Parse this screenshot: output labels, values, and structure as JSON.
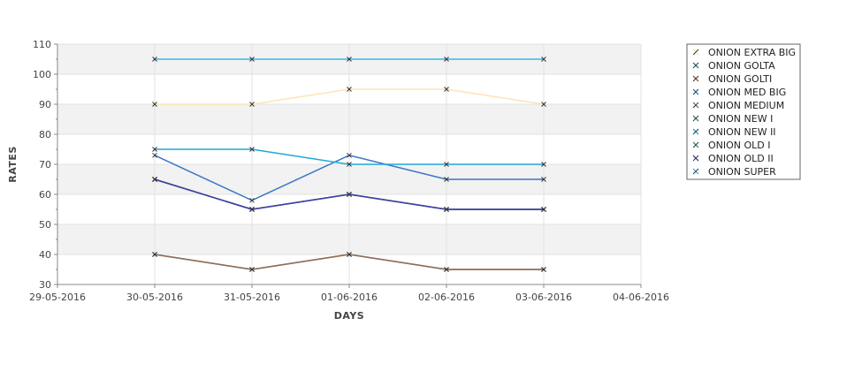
{
  "chart_data": {
    "type": "line",
    "xlabel": "DAYS",
    "ylabel": "RATES",
    "x_tick_labels": [
      "29-05-2016",
      "30-05-2016",
      "31-05-2016",
      "01-06-2016",
      "02-06-2016",
      "03-06-2016",
      "04-06-2016"
    ],
    "x": [
      "30-05-2016",
      "31-05-2016",
      "01-06-2016",
      "02-06-2016",
      "03-06-2016"
    ],
    "ylim": [
      30,
      110
    ],
    "y_ticks": [
      30,
      40,
      50,
      60,
      70,
      80,
      90,
      100,
      110
    ],
    "grid": true,
    "legend_position": "right",
    "series": [
      {
        "name": "ONION EXTRA BIG",
        "color": "#FFE4B5",
        "values": [
          90,
          90,
          95,
          95,
          90
        ]
      },
      {
        "name": "ONION GOLTA",
        "color": "#1E8C6E",
        "values": [
          65,
          55,
          60,
          55,
          55
        ]
      },
      {
        "name": "ONION GOLTI",
        "color": "#A0522D",
        "values": [
          40,
          35,
          40,
          35,
          35
        ]
      },
      {
        "name": "ONION MED BIG",
        "color": "#3A76C4",
        "values": [
          73,
          58,
          73,
          65,
          65
        ]
      },
      {
        "name": "ONION MEDIUM",
        "color": "#8B6F5A",
        "values": [
          40,
          35,
          40,
          35,
          35
        ]
      },
      {
        "name": "ONION NEW I",
        "color": "#2E8B8B",
        "values": [
          65,
          55,
          60,
          55,
          55
        ]
      },
      {
        "name": "ONION NEW II",
        "color": "#1FA8D8",
        "values": [
          75,
          75,
          70,
          70,
          70
        ]
      },
      {
        "name": "ONION OLD I",
        "color": "#1F9E8A",
        "values": [
          65,
          55,
          60,
          55,
          55
        ]
      },
      {
        "name": "ONION OLD II",
        "color": "#4B3AA8",
        "values": [
          65,
          55,
          60,
          55,
          55
        ]
      },
      {
        "name": "ONION SUPER",
        "color": "#38B6E8",
        "values": [
          105,
          105,
          105,
          105,
          105
        ]
      }
    ]
  }
}
